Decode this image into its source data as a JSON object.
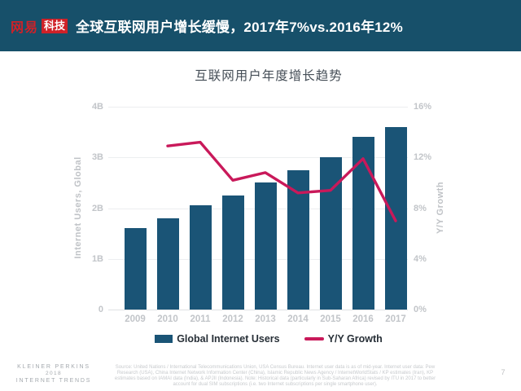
{
  "header": {
    "logo_netease": "网易",
    "logo_tech": "科技",
    "title": "全球互联网用户增长缓慢，2017年7%vs.2016年12%",
    "bg_color": "#17506a",
    "logo_red": "#cf2128"
  },
  "chart_data": {
    "type": "bar+line combo",
    "title": "互联网用户年度增长趋势",
    "categories": [
      "2009",
      "2010",
      "2011",
      "2012",
      "2013",
      "2014",
      "2015",
      "2016",
      "2017"
    ],
    "series": [
      {
        "name": "Global Internet Users",
        "type": "bar",
        "axis": "left",
        "unit": "B users",
        "color": "#1a5476",
        "values": [
          1.6,
          1.8,
          2.05,
          2.25,
          2.5,
          2.75,
          3.0,
          3.4,
          3.6
        ]
      },
      {
        "name": "Y/Y Growth",
        "type": "line",
        "axis": "right",
        "unit": "%",
        "color": "#c9195a",
        "values": [
          null,
          12.9,
          13.2,
          10.2,
          10.8,
          9.2,
          9.4,
          11.9,
          7.0
        ]
      }
    ],
    "left_axis": {
      "label": "Internet Users, Global",
      "ticks": [
        "4B",
        "3B",
        "2B",
        "1B",
        "0"
      ],
      "min": 0,
      "max": 4
    },
    "right_axis": {
      "label": "Y/Y Growth",
      "ticks": [
        "16%",
        "12%",
        "8%",
        "4%",
        "0%"
      ],
      "min": 0,
      "max": 16
    },
    "grid": true,
    "legend_position": "bottom"
  },
  "footer": {
    "brand_lines": [
      "KLEINER PERKINS",
      "2018",
      "INTERNET TRENDS"
    ],
    "source_text": "Source: United Nations / International Telecommunications Union, USA Census Bureau. Internet user data is as of mid-year. Internet user data: Pew Research (USA), China Internet Network Information Center (China), Islamic Republic News Agency / InternetWorldStats / KP estimates (Iran), KP estimates based on IAMAI data (India), & APJII (Indonesia). Note: Historical data (particularly in Sub-Saharan Africa) revised by ITU in 2017 to better account for dual SIM subscriptions (i.e. two Internet subscriptions per single smartphone user).",
    "page_number": "7"
  }
}
